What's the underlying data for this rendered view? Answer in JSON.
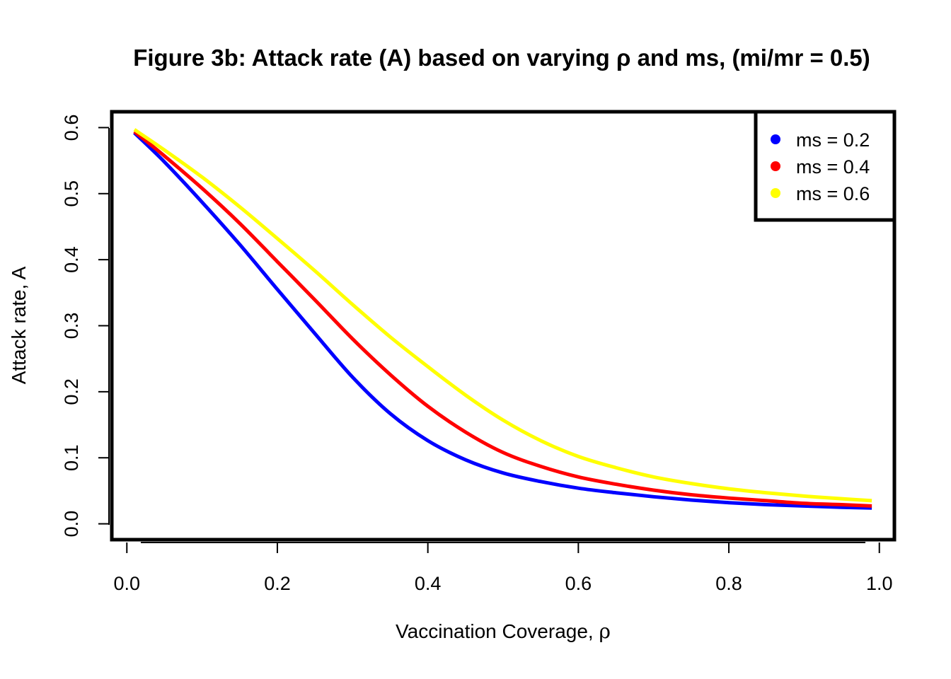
{
  "chart_data": {
    "type": "line",
    "title": "Figure 3b: Attack rate (A) based on varying ρ and ms, (mi/mr = 0.5)",
    "xlabel_text": "Vaccination Coverage, ",
    "xlabel_symbol": "ρ",
    "ylabel": "Attack rate, A",
    "xlim": [
      -0.02,
      1.02
    ],
    "ylim": [
      -0.024,
      0.624
    ],
    "x_ticks": [
      0.0,
      0.2,
      0.4,
      0.6,
      0.8,
      1.0
    ],
    "x_tick_labels": [
      "0.0",
      "0.2",
      "0.4",
      "0.6",
      "0.8",
      "1.0"
    ],
    "y_ticks": [
      0.0,
      0.1,
      0.2,
      0.3,
      0.4,
      0.5,
      0.6
    ],
    "y_tick_labels": [
      "0.0",
      "0.1",
      "0.2",
      "0.3",
      "0.4",
      "0.5",
      "0.6"
    ],
    "grid": false,
    "legend_position": "top-right",
    "x": [
      0.01,
      0.05,
      0.1,
      0.15,
      0.2,
      0.25,
      0.3,
      0.35,
      0.4,
      0.45,
      0.5,
      0.55,
      0.6,
      0.65,
      0.7,
      0.75,
      0.8,
      0.85,
      0.9,
      0.95,
      0.99
    ],
    "series": [
      {
        "name": "ms = 0.2",
        "color": "#0000ff",
        "values": [
          0.592,
          0.548,
          0.487,
          0.423,
          0.355,
          0.288,
          0.222,
          0.167,
          0.126,
          0.097,
          0.077,
          0.064,
          0.054,
          0.047,
          0.041,
          0.036,
          0.032,
          0.029,
          0.027,
          0.025,
          0.024
        ]
      },
      {
        "name": "ms = 0.4",
        "color": "#ff0000",
        "values": [
          0.594,
          0.557,
          0.508,
          0.455,
          0.397,
          0.339,
          0.28,
          0.226,
          0.178,
          0.139,
          0.108,
          0.087,
          0.071,
          0.06,
          0.051,
          0.044,
          0.039,
          0.035,
          0.031,
          0.029,
          0.027
        ]
      },
      {
        "name": "ms = 0.6",
        "color": "#ffff00",
        "values": [
          0.597,
          0.566,
          0.525,
          0.48,
          0.432,
          0.383,
          0.332,
          0.283,
          0.238,
          0.195,
          0.157,
          0.126,
          0.102,
          0.085,
          0.071,
          0.061,
          0.053,
          0.047,
          0.042,
          0.038,
          0.035
        ]
      }
    ]
  }
}
